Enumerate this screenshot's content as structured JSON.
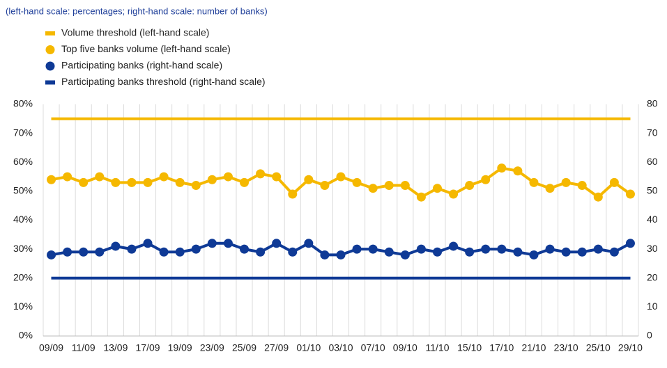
{
  "chart_data": {
    "type": "line",
    "subtitle": "(left-hand scale: percentages; right-hand scale: number of banks)",
    "categories": [
      "09/09",
      null,
      "11/09",
      null,
      "13/09",
      null,
      "17/09",
      null,
      "19/09",
      null,
      "23/09",
      null,
      "25/09",
      null,
      "27/09",
      null,
      "01/10",
      null,
      "03/10",
      null,
      "07/10",
      null,
      "09/10",
      null,
      "11/10",
      null,
      "15/10",
      null,
      "17/10",
      null,
      "21/10",
      null,
      "23/10",
      null,
      "25/10",
      null,
      "29/10"
    ],
    "series": [
      {
        "name": "Volume threshold (left-hand scale)",
        "color": "#f5b800",
        "marker": "line",
        "axis": "y",
        "values": [
          75,
          75,
          75,
          75,
          75,
          75,
          75,
          75,
          75,
          75,
          75,
          75,
          75,
          75,
          75,
          75,
          75,
          75,
          75,
          75,
          75,
          75,
          75,
          75,
          75,
          75,
          75,
          75,
          75,
          75,
          75,
          75,
          75,
          75,
          75,
          75,
          75
        ]
      },
      {
        "name": "Top five banks volume (left-hand scale)",
        "color": "#f5b800",
        "marker": "circle",
        "axis": "y",
        "values": [
          54,
          55,
          53,
          55,
          53,
          53,
          53,
          55,
          53,
          52,
          54,
          55,
          53,
          56,
          55,
          49,
          54,
          52,
          55,
          53,
          51,
          52,
          52,
          48,
          51,
          49,
          52,
          54,
          58,
          57,
          53,
          51,
          53,
          52,
          48,
          53,
          49
        ]
      },
      {
        "name": "Participating banks (right-hand scale)",
        "color": "#0f3a96",
        "marker": "circle",
        "axis": "y2",
        "values": [
          28,
          29,
          29,
          29,
          31,
          30,
          32,
          29,
          29,
          30,
          32,
          32,
          30,
          29,
          32,
          29,
          32,
          28,
          28,
          30,
          30,
          29,
          28,
          30,
          29,
          31,
          29,
          30,
          30,
          29,
          28,
          30,
          29,
          29,
          30,
          29,
          32
        ]
      },
      {
        "name": "Participating banks threshold (right-hand scale)",
        "color": "#0f3a96",
        "marker": "line",
        "axis": "y2",
        "values": [
          20,
          20,
          20,
          20,
          20,
          20,
          20,
          20,
          20,
          20,
          20,
          20,
          20,
          20,
          20,
          20,
          20,
          20,
          20,
          20,
          20,
          20,
          20,
          20,
          20,
          20,
          20,
          20,
          20,
          20,
          20,
          20,
          20,
          20,
          20,
          20,
          20
        ]
      }
    ],
    "ylim": [
      0,
      80
    ],
    "yticks": [
      {
        "value": 0,
        "label": "0%"
      },
      {
        "value": 10,
        "label": "10%"
      },
      {
        "value": 20,
        "label": "20%"
      },
      {
        "value": 30,
        "label": "30%"
      },
      {
        "value": 40,
        "label": "40%"
      },
      {
        "value": 50,
        "label": "50%"
      },
      {
        "value": 60,
        "label": "60%"
      },
      {
        "value": 70,
        "label": "70%"
      },
      {
        "value": 80,
        "label": "80%"
      }
    ],
    "y2lim": [
      0,
      80
    ],
    "y2ticks": [
      0,
      10,
      20,
      30,
      40,
      50,
      60,
      70,
      80
    ],
    "grid": true
  }
}
